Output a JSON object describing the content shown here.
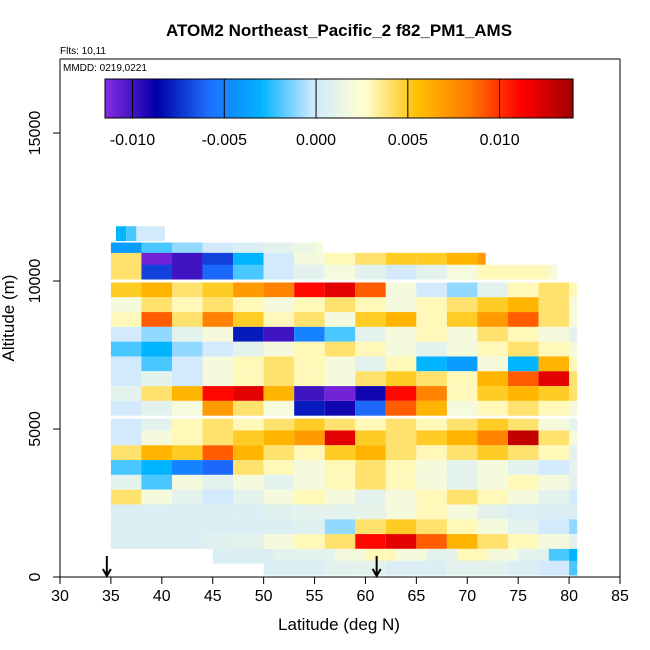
{
  "chart_data": {
    "type": "heatmap",
    "title": "ATOM2 Northeast_Pacific_2 f82_PM1_AMS",
    "flights_label": "Flts: 10,11",
    "dates_label": "MMDD: 0219,0221",
    "xlabel": "Latitude (deg N)",
    "ylabel": "Altitude (m)",
    "xlim": [
      30,
      85
    ],
    "ylim": [
      0,
      17500
    ],
    "x_ticks": [
      30,
      35,
      40,
      45,
      50,
      55,
      60,
      65,
      70,
      75,
      80,
      85
    ],
    "y_ticks": [
      0,
      5000,
      10000,
      15000
    ],
    "colorbar": {
      "range": [
        -0.0115,
        0.014
      ],
      "ticks": [
        -0.01,
        -0.005,
        0.0,
        0.005,
        0.01
      ],
      "tick_labels": [
        "-0.010",
        "-0.005",
        "0.000",
        "0.005",
        "0.010"
      ],
      "colors": [
        "#8a2be2",
        "#0000a8",
        "#1e6fff",
        "#00b4ff",
        "#cfe9ff",
        "#ffffd0",
        "#ffc000",
        "#ff7a00",
        "#ff0000",
        "#a00000"
      ]
    },
    "markers": [
      {
        "lat": 34.6,
        "label": "down-arrow"
      },
      {
        "lat": 61.1,
        "label": "down-arrow"
      }
    ],
    "series": [
      {
        "alt": 11600,
        "lat": [
          35.5,
          36.5,
          37.5,
          38.5,
          39.5
        ],
        "values": [
          -0.003,
          -0.002,
          0.0,
          0.0,
          0.0
        ]
      },
      {
        "alt": 11050,
        "lat": [
          35,
          38,
          41,
          44,
          47,
          50,
          53,
          55
        ],
        "values": [
          -0.004,
          -0.002,
          -0.001,
          0.0,
          0.0005,
          0.001,
          0.0015,
          0.002
        ]
      },
      {
        "alt": 10700,
        "lat": [
          35,
          38,
          41,
          44,
          47,
          50,
          53,
          56,
          59,
          62,
          65,
          68,
          71
        ],
        "values": [
          0.004,
          -0.011,
          -0.01,
          -0.007,
          -0.003,
          0.0,
          0.002,
          0.003,
          0.004,
          0.005,
          0.005,
          0.006,
          0.007
        ]
      },
      {
        "alt": 10300,
        "lat": [
          35,
          38,
          41,
          44,
          47,
          50,
          53,
          56,
          59,
          62,
          65,
          68,
          71,
          74,
          78
        ],
        "values": [
          0.004,
          -0.007,
          -0.01,
          -0.006,
          -0.002,
          0.0,
          0.001,
          0.002,
          0.001,
          0.0,
          0.001,
          0.002,
          0.003,
          0.003,
          0.002
        ]
      },
      {
        "alt": 9700,
        "lat": [
          35,
          38,
          41,
          44,
          47,
          50,
          53,
          56,
          59,
          62,
          65,
          68,
          71,
          74,
          77,
          80
        ],
        "values": [
          0.005,
          0.006,
          0.004,
          0.005,
          0.007,
          0.008,
          0.011,
          0.012,
          0.009,
          0.002,
          0.0,
          -0.001,
          0.001,
          0.003,
          0.004,
          0.003
        ]
      },
      {
        "alt": 9200,
        "lat": [
          35,
          38,
          41,
          44,
          47,
          50,
          53,
          56,
          59,
          62,
          65,
          68,
          71,
          74,
          77,
          80
        ],
        "values": [
          0.002,
          0.004,
          0.003,
          0.004,
          0.003,
          0.002,
          0.003,
          0.004,
          0.003,
          0.002,
          0.003,
          0.004,
          0.005,
          0.006,
          0.004,
          0.002
        ]
      },
      {
        "alt": 8700,
        "lat": [
          35,
          38,
          41,
          44,
          47,
          50,
          53,
          56,
          59,
          62,
          65,
          68,
          71,
          74,
          77,
          80
        ],
        "values": [
          0.003,
          0.009,
          0.004,
          0.008,
          0.005,
          0.003,
          0.004,
          0.002,
          0.005,
          0.006,
          0.003,
          0.005,
          0.007,
          0.009,
          0.004,
          0.002
        ]
      },
      {
        "alt": 8200,
        "lat": [
          35,
          38,
          41,
          44,
          47,
          50,
          53,
          56,
          59,
          62,
          65,
          68,
          71,
          74,
          77,
          80
        ],
        "values": [
          0.0,
          -0.001,
          0.001,
          0.002,
          -0.008,
          -0.01,
          -0.005,
          -0.002,
          0.001,
          0.002,
          0.003,
          0.002,
          0.004,
          0.003,
          0.002,
          0.001
        ]
      },
      {
        "alt": 7700,
        "lat": [
          35,
          38,
          41,
          44,
          47,
          50,
          53,
          56,
          59,
          62,
          65,
          68,
          71,
          74,
          77,
          80
        ],
        "values": [
          -0.002,
          -0.003,
          -0.001,
          0.0,
          0.001,
          0.002,
          0.003,
          0.004,
          0.003,
          0.002,
          0.001,
          0.002,
          0.003,
          0.004,
          0.003,
          0.002
        ]
      },
      {
        "alt": 7200,
        "lat": [
          35,
          38,
          41,
          44,
          47,
          50,
          53,
          56,
          59,
          62,
          65,
          68,
          71,
          74,
          77,
          80
        ],
        "values": [
          0.0,
          -0.002,
          0.0,
          0.002,
          0.003,
          0.004,
          0.003,
          0.002,
          0.001,
          0.003,
          -0.003,
          -0.004,
          0.002,
          -0.003,
          0.006,
          0.003
        ]
      },
      {
        "alt": 6700,
        "lat": [
          35,
          38,
          41,
          44,
          47,
          50,
          53,
          56,
          59,
          62,
          65,
          68,
          71,
          74,
          77,
          80
        ],
        "values": [
          0.0,
          0.001,
          0.0,
          0.002,
          0.003,
          0.004,
          0.003,
          0.002,
          0.004,
          0.005,
          0.004,
          0.003,
          0.006,
          0.009,
          0.012,
          0.004
        ]
      },
      {
        "alt": 6200,
        "lat": [
          35,
          38,
          41,
          44,
          47,
          50,
          53,
          56,
          59,
          62,
          65,
          68,
          71,
          74,
          77,
          80
        ],
        "values": [
          0.001,
          0.004,
          0.006,
          0.011,
          0.012,
          0.006,
          -0.01,
          -0.011,
          -0.009,
          0.011,
          0.008,
          0.003,
          0.005,
          0.006,
          0.005,
          0.004
        ]
      },
      {
        "alt": 5700,
        "lat": [
          35,
          38,
          41,
          44,
          47,
          50,
          53,
          56,
          59,
          62,
          65,
          68,
          71,
          74,
          77,
          80
        ],
        "values": [
          0.0,
          0.001,
          0.002,
          0.007,
          0.004,
          0.002,
          -0.008,
          -0.009,
          -0.006,
          0.009,
          0.006,
          0.002,
          0.003,
          0.004,
          0.003,
          0.002
        ]
      },
      {
        "alt": 5100,
        "lat": [
          35,
          38,
          41,
          44,
          47,
          50,
          53,
          56,
          59,
          62,
          65,
          68,
          71,
          74,
          77,
          80
        ],
        "values": [
          0.0,
          0.001,
          0.003,
          0.004,
          0.003,
          0.004,
          0.005,
          0.004,
          0.003,
          0.004,
          0.003,
          0.004,
          0.005,
          0.004,
          0.002,
          0.001
        ]
      },
      {
        "alt": 4700,
        "lat": [
          35,
          38,
          41,
          44,
          47,
          50,
          53,
          56,
          59,
          62,
          65,
          68,
          71,
          74,
          77,
          80
        ],
        "values": [
          0.0,
          0.002,
          0.003,
          0.004,
          0.005,
          0.006,
          0.007,
          0.012,
          0.005,
          0.004,
          0.005,
          0.006,
          0.008,
          0.013,
          0.004,
          0.002
        ]
      },
      {
        "alt": 4200,
        "lat": [
          35,
          38,
          41,
          44,
          47,
          50,
          53,
          56,
          59,
          62,
          65,
          68,
          71,
          74,
          77,
          80
        ],
        "values": [
          0.004,
          0.006,
          0.005,
          0.009,
          0.006,
          0.004,
          0.003,
          0.005,
          0.006,
          0.004,
          0.003,
          0.004,
          0.005,
          0.004,
          0.003,
          0.001
        ]
      },
      {
        "alt": 3700,
        "lat": [
          35,
          38,
          41,
          44,
          47,
          50,
          53,
          56,
          59,
          62,
          65,
          68,
          71,
          74,
          77,
          80
        ],
        "values": [
          -0.002,
          -0.003,
          -0.005,
          -0.006,
          0.004,
          0.003,
          0.002,
          0.003,
          0.004,
          0.003,
          0.002,
          0.001,
          0.002,
          0.001,
          0.0,
          0.001
        ]
      },
      {
        "alt": 3200,
        "lat": [
          35,
          38,
          41,
          44,
          47,
          50,
          53,
          56,
          59,
          62,
          65,
          68,
          71,
          74,
          77,
          80
        ],
        "values": [
          0.001,
          -0.002,
          0.002,
          0.001,
          0.002,
          0.001,
          0.002,
          0.003,
          0.004,
          0.003,
          0.002,
          0.001,
          0.002,
          0.003,
          0.002,
          0.001
        ]
      },
      {
        "alt": 2700,
        "lat": [
          35,
          38,
          41,
          44,
          47,
          50,
          53,
          56,
          59,
          62,
          65,
          68,
          71,
          74,
          77,
          80
        ],
        "values": [
          0.004,
          0.002,
          0.001,
          0.0,
          0.001,
          0.002,
          0.003,
          0.002,
          0.001,
          0.002,
          0.003,
          0.004,
          0.003,
          0.002,
          0.001,
          0.0
        ]
      },
      {
        "alt": 2200,
        "lat": [
          35,
          38,
          41,
          44,
          47,
          50,
          53,
          56,
          59,
          62,
          65,
          68,
          71,
          74,
          77,
          80
        ],
        "values": [
          0.0005,
          0.0005,
          0.0005,
          0.0005,
          0.0005,
          0.0008,
          0.001,
          0.001,
          0.0012,
          0.002,
          0.003,
          0.002,
          0.001,
          0.0005,
          0.0005,
          0.0005
        ]
      },
      {
        "alt": 1700,
        "lat": [
          35,
          38,
          41,
          44,
          47,
          50,
          53,
          56,
          59,
          62,
          65,
          68,
          71,
          74,
          77,
          80
        ],
        "values": [
          0.0005,
          0.0005,
          0.0005,
          0.0005,
          0.0005,
          0.0005,
          0.0008,
          -0.001,
          0.004,
          0.005,
          0.004,
          0.003,
          0.002,
          0.001,
          0.0,
          -0.001
        ]
      },
      {
        "alt": 1200,
        "lat": [
          35,
          38,
          41,
          44,
          47,
          50,
          53,
          56,
          59,
          62,
          65,
          68,
          71,
          74,
          77,
          80
        ],
        "values": [
          0.0005,
          0.0005,
          0.0005,
          0.0008,
          0.001,
          0.002,
          0.003,
          0.004,
          0.011,
          0.012,
          0.009,
          0.006,
          0.004,
          0.003,
          0.002,
          0.001
        ]
      },
      {
        "alt": 700,
        "lat": [
          45,
          48,
          51,
          54,
          57,
          60,
          63,
          66,
          69,
          72,
          75,
          78,
          80
        ],
        "values": [
          0.0005,
          0.0005,
          0.001,
          0.001,
          0.002,
          0.003,
          0.002,
          0.001,
          0.003,
          0.002,
          0.001,
          -0.002,
          -0.003
        ]
      },
      {
        "alt": 300,
        "lat": [
          50,
          53,
          56,
          59,
          62,
          65,
          68,
          71,
          74,
          77,
          80
        ],
        "values": [
          0.0005,
          0.0005,
          0.001,
          0.001,
          0.0005,
          0.0005,
          0.001,
          0.001,
          0.0005,
          0.0,
          -0.002
        ]
      }
    ]
  }
}
